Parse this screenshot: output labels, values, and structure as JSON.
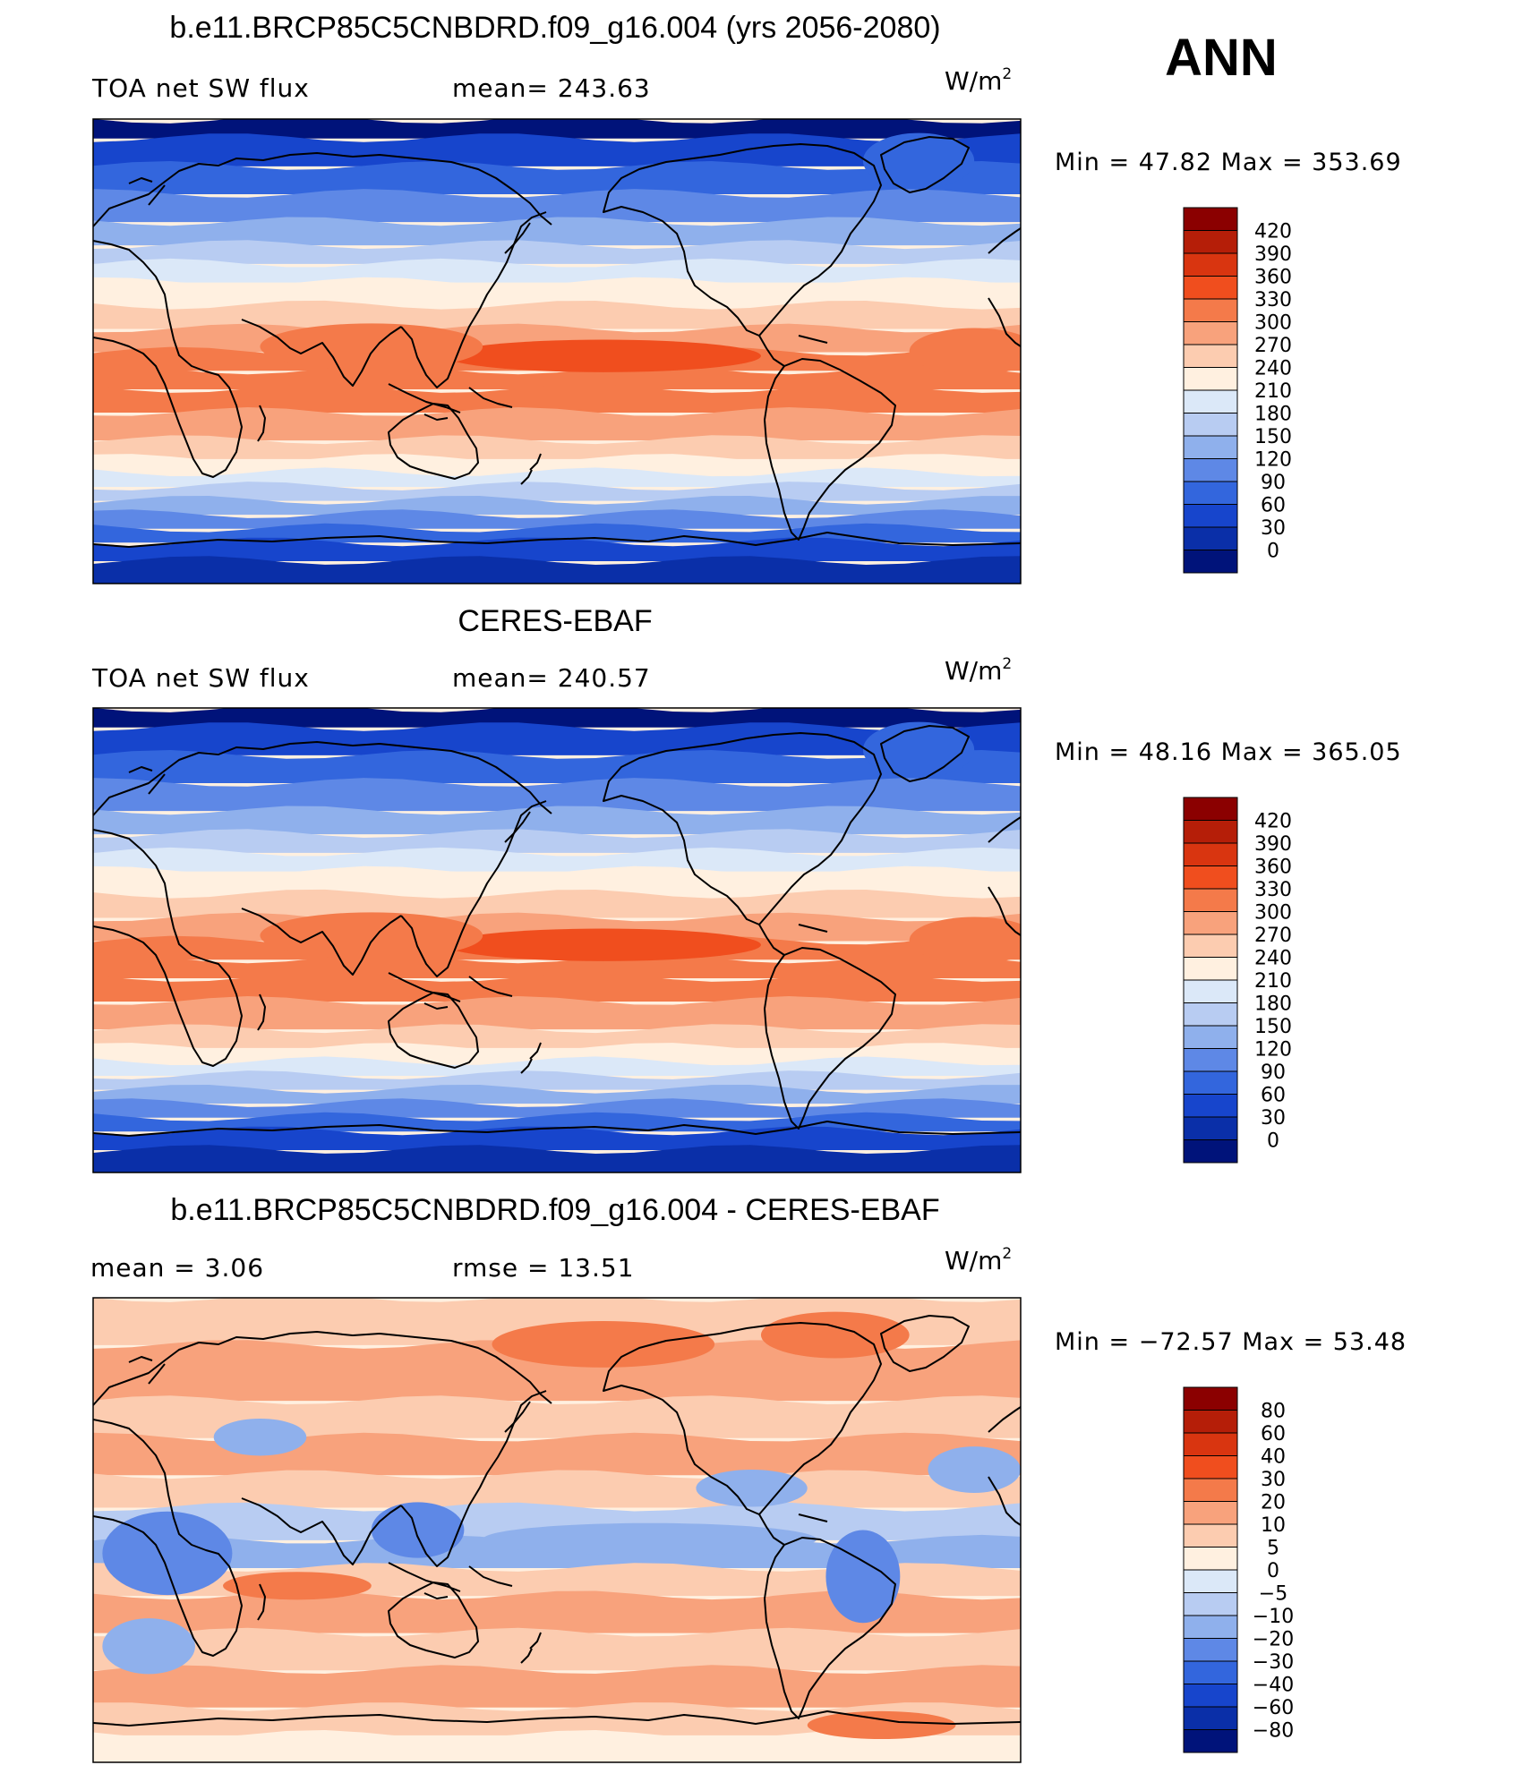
{
  "figure": {
    "season_label": "ANN",
    "units_label": "W/m",
    "units_power": "2"
  },
  "panels": [
    {
      "id": "model",
      "title": "b.e11.BRCP85C5CNBDRD.f09_g16.004 (yrs 2056-2080)",
      "left_text": "TOA net SW flux",
      "center_text": "mean= 243.63",
      "min_max": "Min =   47.82  Max  =  353.69",
      "field": "absolute",
      "palette": "abs",
      "colorbar_labels": [
        "420",
        "390",
        "360",
        "330",
        "300",
        "270",
        "240",
        "210",
        "180",
        "150",
        "120",
        "90",
        "60",
        "30",
        "0"
      ]
    },
    {
      "id": "obs",
      "title": "CERES-EBAF",
      "left_text": "TOA net SW flux",
      "center_text": "mean= 240.57",
      "min_max": "Min =   48.16  Max  =  365.05",
      "field": "absolute",
      "palette": "abs",
      "colorbar_labels": [
        "420",
        "390",
        "360",
        "330",
        "300",
        "270",
        "240",
        "210",
        "180",
        "150",
        "120",
        "90",
        "60",
        "30",
        "0"
      ]
    },
    {
      "id": "diff",
      "title": "b.e11.BRCP85C5CNBDRD.f09_g16.004 - CERES-EBAF",
      "left_text": "mean =     3.06",
      "center_text": "rmse  =    13.51",
      "min_max": "Min  = −72.57  Max  =     53.48",
      "field": "difference",
      "palette": "diff",
      "colorbar_labels": [
        "80",
        "60",
        "40",
        "30",
        "20",
        "10",
        "5",
        "0",
        "−5",
        "−10",
        "−20",
        "−30",
        "−40",
        "−60",
        "−80"
      ]
    }
  ],
  "palettes": {
    "abs": [
      "#8b0000",
      "#b51e08",
      "#d93510",
      "#f04e1e",
      "#f47a4a",
      "#f8a27c",
      "#fcccb0",
      "#fff0e0",
      "#dbe8f8",
      "#b8ccf2",
      "#8fb0ec",
      "#5e88e6",
      "#3366dd",
      "#1745cc",
      "#0a2fa8",
      "#00137a"
    ],
    "diff": [
      "#8b0000",
      "#b51e08",
      "#d93510",
      "#f04e1e",
      "#f47a4a",
      "#f8a27c",
      "#fcccb0",
      "#fff0e0",
      "#dbe8f8",
      "#b8ccf2",
      "#8fb0ec",
      "#5e88e6",
      "#3366dd",
      "#1745cc",
      "#0a2fa8",
      "#00137a"
    ]
  }
}
